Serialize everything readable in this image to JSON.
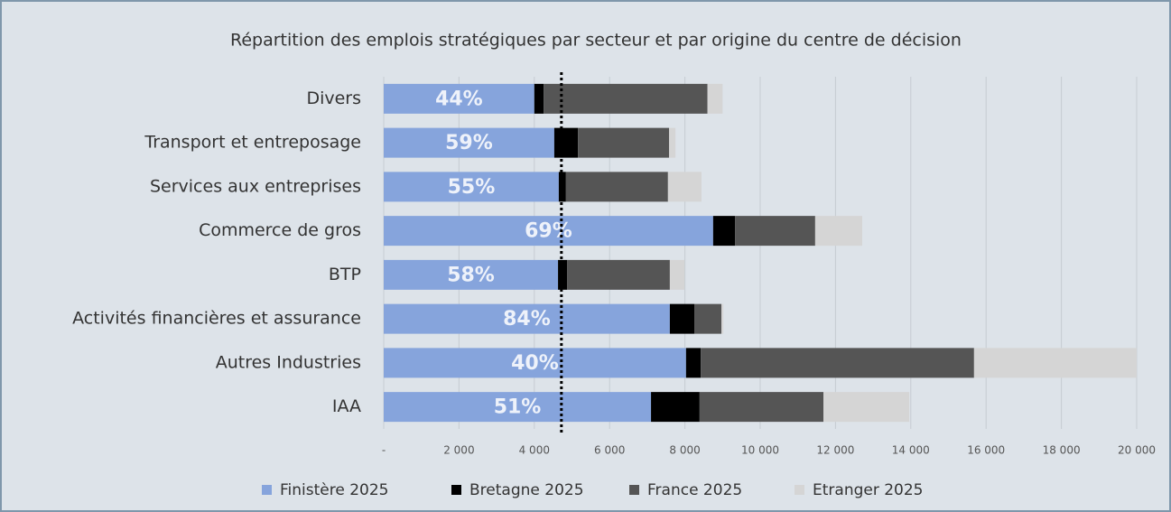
{
  "chart_data": {
    "type": "stacked-bar-horizontal",
    "title": "Répartition des emplois stratégiques par secteur et par origine du centre de décision",
    "categories": [
      "Divers",
      "Transport et entreposage",
      "Services aux entreprises",
      "Commerce de gros",
      "BTP",
      "Activités financières et assurance",
      "Autres Industries",
      "IAA"
    ],
    "series": [
      {
        "name": "Finistère 2025",
        "color": "#86a4dc",
        "values": [
          4000,
          4530,
          4650,
          8750,
          4630,
          7600,
          8030,
          7100
        ]
      },
      {
        "name": "Bretagne 2025",
        "color": "#000000",
        "values": [
          250,
          630,
          190,
          580,
          240,
          650,
          390,
          1290
        ]
      },
      {
        "name": "France 2025",
        "color": "#555555",
        "values": [
          4350,
          2420,
          2710,
          2130,
          2730,
          720,
          7260,
          3290
        ]
      },
      {
        "name": "Etranger 2025",
        "color": "#d5d5d5",
        "values": [
          400,
          170,
          890,
          1250,
          390,
          50,
          4320,
          2280
        ]
      }
    ],
    "share_labels": [
      "44%",
      "59%",
      "55%",
      "69%",
      "58%",
      "84%",
      "40%",
      "51%"
    ],
    "reference_x": 4720,
    "xlim": [
      0,
      20000
    ],
    "xticks": [
      {
        "value": 0,
        "label": "-"
      },
      {
        "value": 2000,
        "label": "2 000"
      },
      {
        "value": 4000,
        "label": "4 000"
      },
      {
        "value": 6000,
        "label": "6 000"
      },
      {
        "value": 8000,
        "label": "8 000"
      },
      {
        "value": 10000,
        "label": "10 000"
      },
      {
        "value": 12000,
        "label": "12 000"
      },
      {
        "value": 14000,
        "label": "14 000"
      },
      {
        "value": 16000,
        "label": "16 000"
      },
      {
        "value": 18000,
        "label": "18 000"
      },
      {
        "value": 20000,
        "label": "20 000"
      }
    ],
    "grid": true,
    "legend": "bottom"
  }
}
